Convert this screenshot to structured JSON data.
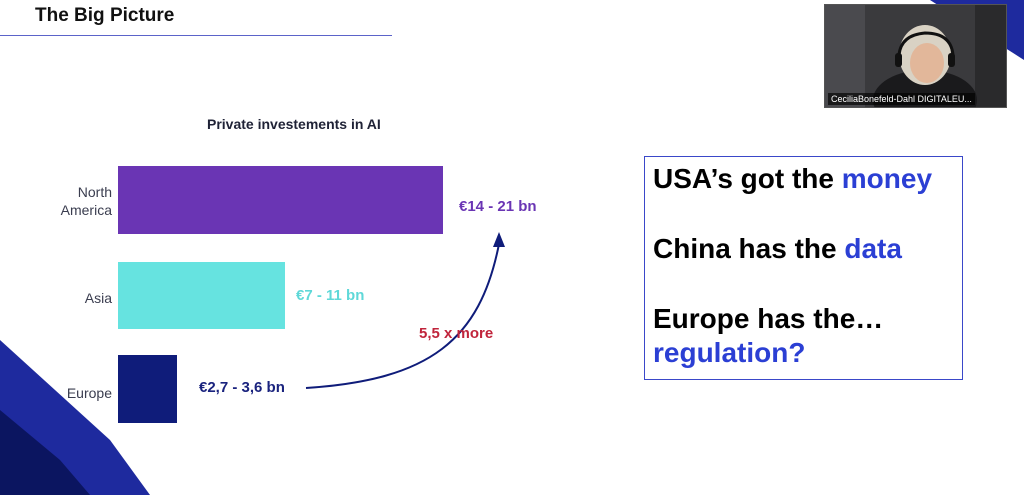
{
  "slide": {
    "title": "The Big Picture"
  },
  "chart_data": {
    "type": "bar",
    "orientation": "horizontal",
    "title": "Private investements in AI",
    "categories": [
      "North America",
      "Asia",
      "Europe"
    ],
    "category_lines": [
      [
        "North",
        "America"
      ],
      [
        "Asia"
      ],
      [
        "Europe"
      ]
    ],
    "values": [
      17.5,
      9,
      3.15
    ],
    "value_ranges": [
      [
        14,
        21
      ],
      [
        7,
        11
      ],
      [
        2.7,
        3.6
      ]
    ],
    "value_labels": [
      "€14 - 21 bn",
      "€7 - 11 bn",
      "€2,7 - 3,6 bn"
    ],
    "colors": [
      "#6a35b4",
      "#66e3e0",
      "#0f1c7a"
    ],
    "value_label_colors": [
      "#6a35b4",
      "#5fd8d8",
      "#1a237e"
    ],
    "xlabel": "",
    "ylabel": "",
    "grid": false,
    "legend": "none",
    "annotation": {
      "text": "5,5 x more",
      "color": "#c0243b",
      "arrow_from": "Europe",
      "arrow_to": "North America"
    }
  },
  "callout": {
    "border_color": "#3a48c9",
    "highlight_color": "#2b3fd4",
    "lines": [
      {
        "before": "USA’s got the ",
        "highlight": "money",
        "after": ""
      },
      {
        "before": "China has the ",
        "highlight": "data",
        "after": ""
      },
      {
        "before": "Europe has the…",
        "highlight": "",
        "after": ""
      },
      {
        "before": "",
        "highlight": "regulation?",
        "after": ""
      }
    ]
  },
  "video": {
    "participant_name": "CeciliaBonefeld-Dahl DIGITALEU..."
  },
  "colors": {
    "accent_dark_blue": "#1e2a9e",
    "accent_navy": "#0b1560"
  }
}
